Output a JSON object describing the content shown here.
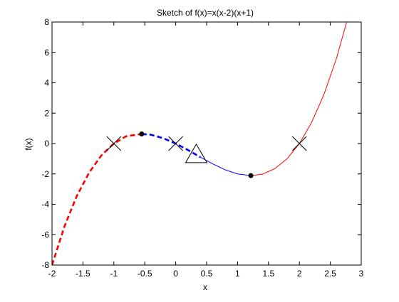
{
  "chart_data": {
    "type": "line",
    "title": "Sketch of f(x)=x(x-2)(x+1)",
    "xlabel": "x",
    "ylabel": "f(x)",
    "xlim": [
      -2,
      3
    ],
    "ylim": [
      -8,
      8
    ],
    "x_ticks": [
      -2,
      -1.5,
      -1,
      -0.5,
      0,
      0.5,
      1,
      1.5,
      2,
      2.5,
      3
    ],
    "x_tick_labels": [
      "-2",
      "-1.5",
      "-1",
      "-0.5",
      "0",
      "0.5",
      "1",
      "1.5",
      "2",
      "2.5",
      "3"
    ],
    "y_ticks": [
      -8,
      -6,
      -4,
      -2,
      0,
      2,
      4,
      6,
      8
    ],
    "y_tick_labels": [
      "-8",
      "-6",
      "-4",
      "-2",
      "0",
      "2",
      "4",
      "6",
      "8"
    ],
    "grid": false,
    "series": [
      {
        "style": "dashed-thick",
        "color": "#ff0000",
        "x": [
          -2.0,
          -1.8,
          -1.6,
          -1.4,
          -1.2,
          -1.0,
          -0.8,
          -0.55
        ],
        "y": [
          -8.0,
          -5.47,
          -3.46,
          -1.92,
          -0.77,
          0.0,
          0.48,
          0.63
        ]
      },
      {
        "style": "dashed-thick",
        "color": "#0000ff",
        "x": [
          -0.55,
          -0.4,
          -0.2,
          0.0,
          0.2,
          0.4
        ],
        "y": [
          0.63,
          0.58,
          0.35,
          0.0,
          -0.43,
          -0.9
        ]
      },
      {
        "style": "solid-thin",
        "color": "#0000ff",
        "x": [
          0.4,
          0.6,
          0.8,
          1.0,
          1.215
        ],
        "y": [
          -0.9,
          -1.34,
          -1.73,
          -2.0,
          -2.11
        ]
      },
      {
        "style": "solid-thin",
        "color": "#ff0000",
        "x": [
          1.215,
          1.4,
          1.6,
          1.8,
          2.0,
          2.2,
          2.4,
          2.6,
          2.8
        ],
        "y": [
          -2.11,
          -2.02,
          -1.66,
          -1.01,
          0.0,
          1.41,
          3.26,
          5.62,
          8.51
        ]
      }
    ],
    "roots": [
      -1,
      0,
      2
    ],
    "extrema": [
      {
        "x": -0.55,
        "y": 0.63
      },
      {
        "x": 1.215,
        "y": -2.11
      }
    ],
    "inflection": {
      "x": 0.333,
      "y": -0.74
    }
  }
}
